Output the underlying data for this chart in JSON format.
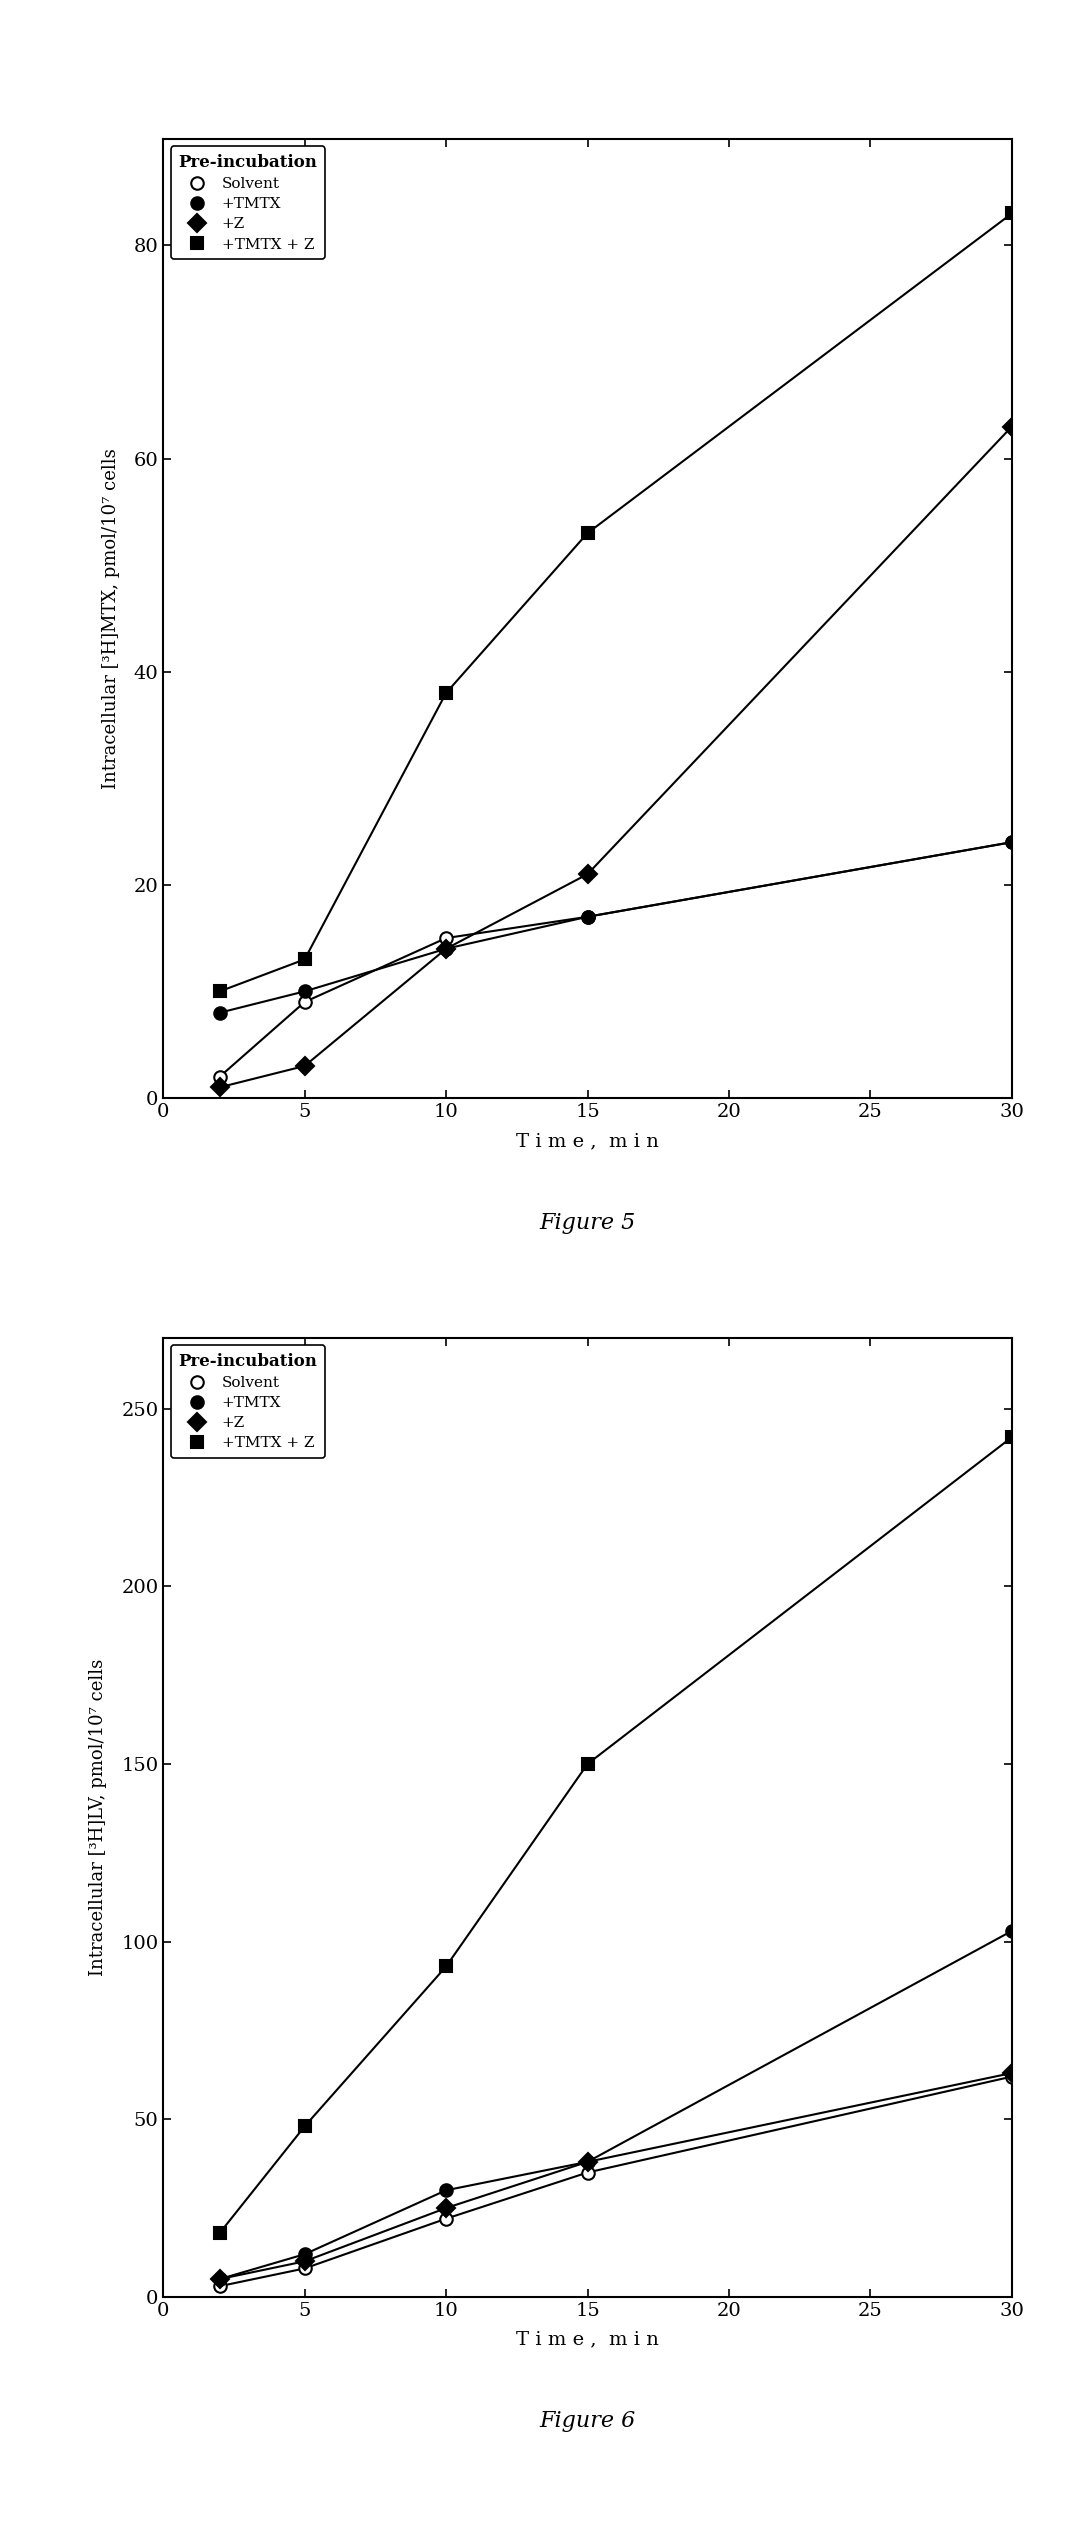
{
  "fig5": {
    "title": "Figure 5",
    "ylabel": "Intracellular [³H]MTX, pmol/10⁷ cells",
    "xlabel": "T i m e ,  m i n",
    "ylim": [
      0,
      90
    ],
    "yticks": [
      0,
      20,
      40,
      60,
      80
    ],
    "xlim": [
      0,
      30
    ],
    "xticks": [
      0,
      5,
      10,
      15,
      20,
      25,
      30
    ],
    "series": {
      "Solvent": {
        "x": [
          2,
          5,
          10,
          15,
          30
        ],
        "y": [
          2,
          9,
          15,
          17,
          24
        ]
      },
      "+TMTX": {
        "x": [
          2,
          5,
          10,
          15,
          30
        ],
        "y": [
          8,
          10,
          14,
          17,
          24
        ]
      },
      "+Z": {
        "x": [
          2,
          5,
          10,
          15,
          30
        ],
        "y": [
          1,
          3,
          14,
          21,
          63
        ]
      },
      "+TMTX + Z": {
        "x": [
          2,
          5,
          10,
          15,
          30
        ],
        "y": [
          10,
          13,
          38,
          53,
          83
        ]
      }
    }
  },
  "fig6": {
    "title": "Figure 6",
    "ylabel": "Intracellular [³H]LV, pmol/10⁷ cells",
    "xlabel": "T i m e ,  m i n",
    "ylim": [
      0,
      270
    ],
    "yticks": [
      0,
      50,
      100,
      150,
      200,
      250
    ],
    "xlim": [
      0,
      30
    ],
    "xticks": [
      0,
      5,
      10,
      15,
      20,
      25,
      30
    ],
    "series": {
      "Solvent": {
        "x": [
          2,
          5,
          10,
          15,
          30
        ],
        "y": [
          3,
          8,
          22,
          35,
          62
        ]
      },
      "+TMTX": {
        "x": [
          2,
          5,
          10,
          15,
          30
        ],
        "y": [
          5,
          12,
          30,
          38,
          103
        ]
      },
      "+Z": {
        "x": [
          2,
          5,
          10,
          15,
          30
        ],
        "y": [
          5,
          10,
          25,
          38,
          63
        ]
      },
      "+TMTX + Z": {
        "x": [
          2,
          5,
          10,
          15,
          30
        ],
        "y": [
          18,
          48,
          93,
          150,
          242
        ]
      }
    }
  },
  "legend_labels": [
    "Solvent",
    "+TMTX",
    "+Z",
    "+TMTX + Z"
  ],
  "legend_title": "Pre-incubation",
  "background_color": "#ffffff",
  "line_color": "#000000",
  "markersize": 9,
  "linewidth": 1.5
}
